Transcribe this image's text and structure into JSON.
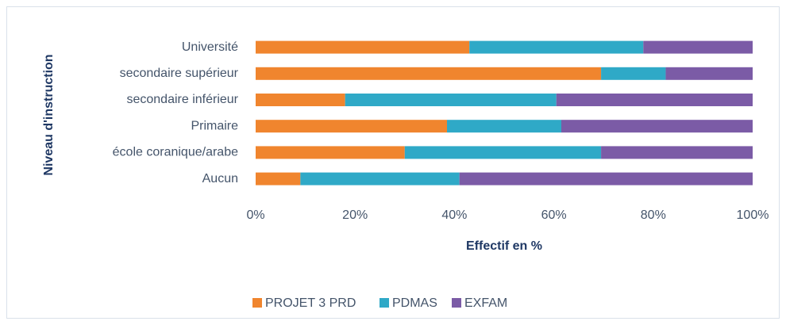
{
  "chart_data": {
    "type": "stacked_barh",
    "x_label": "Effectif en %",
    "y_label": "Niveau d'instruction",
    "categories": [
      "Université",
      "secondaire supérieur",
      "secondaire inférieur",
      "Primaire",
      "école coranique/arabe",
      "Aucun"
    ],
    "series": [
      {
        "name": "PROJET 3 PRD",
        "color": "#F0852E",
        "values": [
          43,
          69.5,
          18,
          38.5,
          30,
          9
        ]
      },
      {
        "name": "PDMAS",
        "color": "#2FA9C7",
        "values": [
          35,
          13,
          42.5,
          23,
          39.5,
          32
        ]
      },
      {
        "name": "EXFAM",
        "color": "#7B5BA6",
        "values": [
          22,
          17.5,
          39.5,
          38.5,
          30.5,
          59
        ]
      }
    ],
    "xlim": [
      0,
      100
    ],
    "xticks": [
      {
        "value": 0,
        "label": "0%"
      },
      {
        "value": 20,
        "label": "20%"
      },
      {
        "value": 40,
        "label": "40%"
      },
      {
        "value": 60,
        "label": "60%"
      },
      {
        "value": 80,
        "label": "80%"
      },
      {
        "value": 100,
        "label": "100%"
      }
    ],
    "legend": "bottom"
  }
}
